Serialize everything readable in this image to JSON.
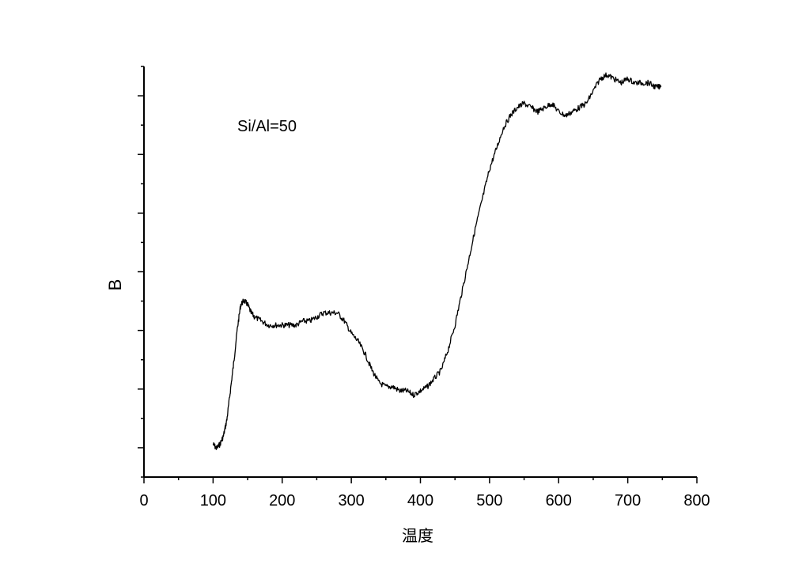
{
  "chart_data": {
    "type": "line",
    "title": "",
    "xlabel": "温度",
    "ylabel": "B",
    "annotation": "Si/Al=50",
    "xlim": [
      0,
      800
    ],
    "x_ticks": [
      0,
      100,
      200,
      300,
      400,
      500,
      600,
      700,
      800
    ],
    "y_tick_labels_shown": false,
    "grid": false,
    "legend": "none",
    "line_color": "#000000",
    "series": [
      {
        "x": [
          100,
          105,
          110,
          115,
          120,
          125,
          130,
          135,
          140,
          145,
          150,
          155,
          160,
          170,
          180,
          190,
          200,
          210,
          220,
          230,
          240,
          250,
          260,
          270,
          280,
          290,
          300,
          310,
          320,
          330,
          340,
          350,
          360,
          370,
          380,
          390,
          400,
          410,
          420,
          430,
          440,
          450,
          460,
          470,
          480,
          490,
          500,
          510,
          520,
          530,
          540,
          550,
          560,
          570,
          580,
          590,
          600,
          610,
          620,
          630,
          640,
          650,
          660,
          670,
          680,
          690,
          700,
          710,
          720,
          730,
          740,
          748
        ],
        "y": [
          0.08,
          0.07,
          0.08,
          0.1,
          0.14,
          0.21,
          0.28,
          0.36,
          0.42,
          0.43,
          0.42,
          0.4,
          0.39,
          0.38,
          0.37,
          0.37,
          0.37,
          0.37,
          0.37,
          0.38,
          0.38,
          0.39,
          0.4,
          0.4,
          0.4,
          0.38,
          0.35,
          0.33,
          0.3,
          0.26,
          0.23,
          0.22,
          0.22,
          0.21,
          0.21,
          0.2,
          0.21,
          0.22,
          0.24,
          0.26,
          0.31,
          0.37,
          0.45,
          0.53,
          0.61,
          0.68,
          0.75,
          0.8,
          0.85,
          0.88,
          0.9,
          0.91,
          0.9,
          0.89,
          0.9,
          0.91,
          0.89,
          0.88,
          0.89,
          0.9,
          0.91,
          0.94,
          0.97,
          0.98,
          0.97,
          0.96,
          0.97,
          0.96,
          0.96,
          0.96,
          0.95,
          0.95
        ]
      }
    ]
  }
}
